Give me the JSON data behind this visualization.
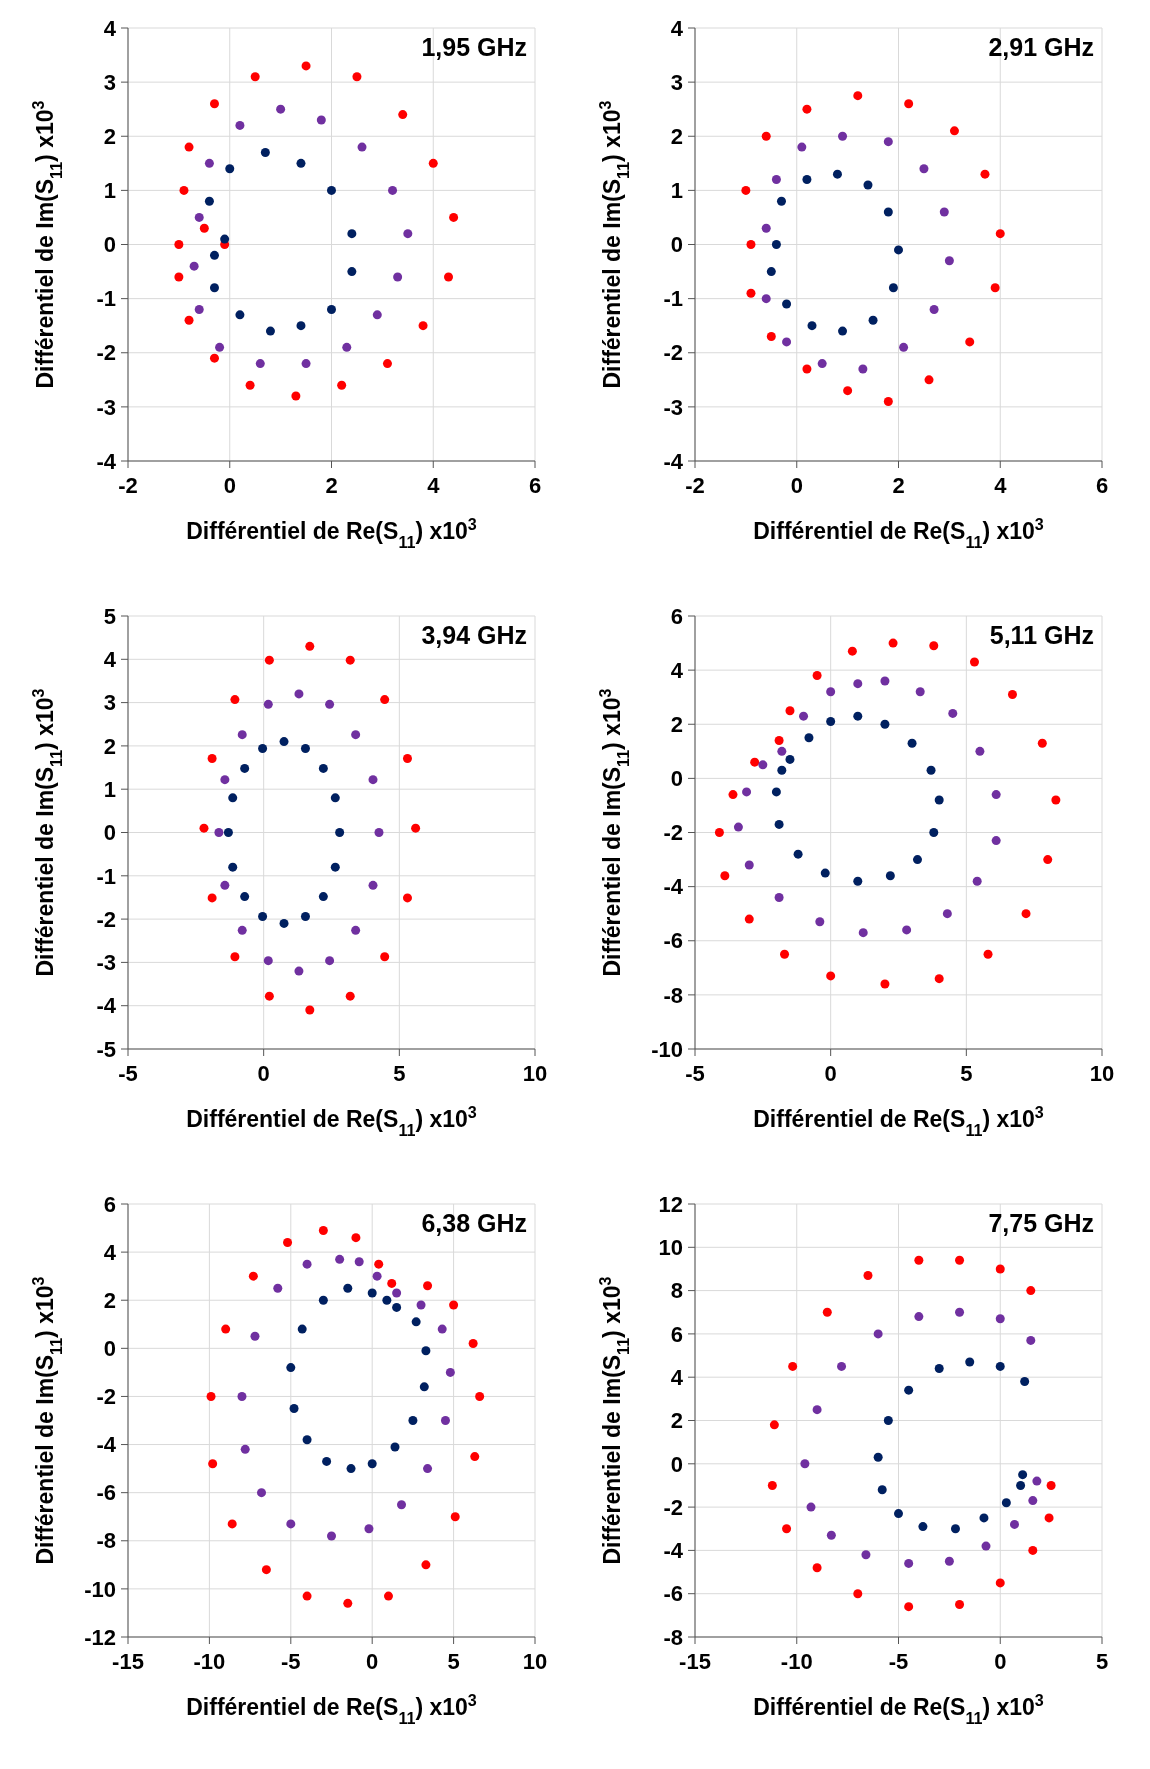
{
  "chart_data": [
    {
      "type": "scatter",
      "title": "1,95 GHz",
      "xlabel": "Différentiel de Re(S$_{11}$) x10$^{3}$",
      "ylabel": "Différentiel de Im(S$_{11}$) x10$^{3}$",
      "xlim": [
        -2,
        6
      ],
      "xticks": [
        -2,
        0,
        2,
        4,
        6
      ],
      "ylim": [
        -4,
        4
      ],
      "yticks": [
        -4,
        -3,
        -2,
        -1,
        0,
        1,
        2,
        3,
        4
      ],
      "grid": true,
      "marker": "circle",
      "series": [
        {
          "color": "#ff0000",
          "x": [
            -0.1,
            -0.5,
            -0.9,
            -0.8,
            -0.3,
            0.5,
            1.5,
            2.5,
            3.4,
            4,
            4.4,
            4.3,
            3.8,
            3.1,
            2.2,
            1.3,
            0.4,
            -0.3,
            -0.8,
            -1,
            -1
          ],
          "values": [
            0,
            0.3,
            1,
            1.8,
            2.6,
            3.1,
            3.3,
            3.1,
            2.4,
            1.5,
            0.5,
            -0.6,
            -1.5,
            -2.2,
            -2.6,
            -2.8,
            -2.6,
            -2.1,
            -1.4,
            -0.6,
            0
          ]
        },
        {
          "color": "#7030a0",
          "x": [
            -0.6,
            -0.4,
            0.2,
            1,
            1.8,
            2.6,
            3.2,
            3.5,
            3.3,
            2.9,
            2.3,
            1.5,
            0.6,
            -0.2,
            -0.6,
            -0.7
          ],
          "values": [
            0.5,
            1.5,
            2.2,
            2.5,
            2.3,
            1.8,
            1,
            0.2,
            -0.6,
            -1.3,
            -1.9,
            -2.2,
            -2.2,
            -1.9,
            -1.2,
            -0.4
          ]
        },
        {
          "color": "#002060",
          "x": [
            -0.1,
            -0.4,
            0,
            0.7,
            1.4,
            2,
            2.4,
            2.4,
            2,
            1.4,
            0.8,
            0.2,
            -0.3,
            -0.3
          ],
          "values": [
            0.1,
            0.8,
            1.4,
            1.7,
            1.5,
            1,
            0.2,
            -0.5,
            -1.2,
            -1.5,
            -1.6,
            -1.3,
            -0.8,
            -0.2
          ]
        }
      ]
    },
    {
      "type": "scatter",
      "title": "2,91 GHz",
      "xlabel": "Différentiel de Re(S$_{11}$) x10$^{3}$",
      "ylabel": "Différentiel de Im(S$_{11}$) x10$^{3}$",
      "xlim": [
        -2,
        6
      ],
      "xticks": [
        -2,
        0,
        2,
        4,
        6
      ],
      "ylim": [
        -4,
        4
      ],
      "yticks": [
        -4,
        -3,
        -2,
        -1,
        0,
        1,
        2,
        3,
        4
      ],
      "grid": true,
      "marker": "circle",
      "series": [
        {
          "color": "#ff0000",
          "x": [
            -0.9,
            -1,
            -0.6,
            0.2,
            1.2,
            2.2,
            3.1,
            3.7,
            4,
            3.9,
            3.4,
            2.6,
            1.8,
            1,
            0.2,
            -0.5,
            -0.9
          ],
          "values": [
            0,
            1,
            2,
            2.5,
            2.75,
            2.6,
            2.1,
            1.3,
            0.2,
            -0.8,
            -1.8,
            -2.5,
            -2.9,
            -2.7,
            -2.3,
            -1.7,
            -0.9
          ]
        },
        {
          "color": "#7030a0",
          "x": [
            -0.6,
            -0.4,
            0.1,
            0.9,
            1.8,
            2.5,
            2.9,
            3,
            2.7,
            2.1,
            1.3,
            0.5,
            -0.2,
            -0.6
          ],
          "values": [
            0.3,
            1.2,
            1.8,
            2,
            1.9,
            1.4,
            0.6,
            -0.3,
            -1.2,
            -1.9,
            -2.3,
            -2.2,
            -1.8,
            -1
          ]
        },
        {
          "color": "#002060",
          "x": [
            -0.4,
            -0.3,
            0.2,
            0.8,
            1.4,
            1.8,
            2,
            1.9,
            1.5,
            0.9,
            0.3,
            -0.2,
            -0.5
          ],
          "values": [
            0,
            0.8,
            1.2,
            1.3,
            1.1,
            0.6,
            -0.1,
            -0.8,
            -1.4,
            -1.6,
            -1.5,
            -1.1,
            -0.5
          ]
        }
      ]
    },
    {
      "type": "scatter",
      "title": "3,94 GHz",
      "xlabel": "Différentiel de Re(S$_{11}$) x10$^{3}$",
      "ylabel": "Différentiel de Im(S$_{11}$) x10$^{3}$",
      "xlim": [
        -5,
        10
      ],
      "xticks": [
        -5,
        0,
        5,
        10
      ],
      "ylim": [
        -5,
        5
      ],
      "yticks": [
        -5,
        -4,
        -3,
        -2,
        -1,
        0,
        1,
        2,
        3,
        4,
        5
      ],
      "grid": true,
      "marker": "circle",
      "series": [
        {
          "color": "#ff0000",
          "x": [
            5.6,
            5.3,
            4.46,
            3.19,
            1.7,
            0.21,
            -1.06,
            -1.9,
            -2.2,
            -1.9,
            -1.06,
            0.21,
            1.7,
            3.19,
            4.46,
            5.3
          ],
          "values": [
            0.1,
            1.71,
            3.07,
            3.98,
            4.3,
            3.98,
            3.07,
            1.71,
            0.1,
            -1.51,
            -2.87,
            -3.78,
            -4.1,
            -3.78,
            -2.87,
            -1.51
          ]
        },
        {
          "color": "#7030a0",
          "x": [
            4.25,
            4.03,
            3.39,
            2.43,
            1.3,
            0.17,
            -0.79,
            -1.43,
            -1.65,
            -1.43,
            -0.79,
            0.17,
            1.3,
            2.43,
            3.39,
            4.03
          ],
          "values": [
            0,
            1.22,
            2.26,
            2.96,
            3.2,
            2.96,
            2.26,
            1.22,
            0,
            -1.22,
            -2.26,
            -2.96,
            -3.2,
            -2.96,
            -2.26,
            -1.22
          ]
        },
        {
          "color": "#002060",
          "x": [
            2.8,
            2.64,
            2.2,
            1.54,
            0.75,
            -0.04,
            -0.7,
            -1.14,
            -1.3,
            -1.14,
            -0.7,
            -0.04,
            0.75,
            1.54,
            2.2,
            2.64
          ],
          "values": [
            0,
            0.8,
            1.48,
            1.94,
            2.1,
            1.94,
            1.48,
            0.8,
            0,
            -0.8,
            -1.48,
            -1.94,
            -2.1,
            -1.94,
            -1.48,
            -0.8
          ]
        }
      ]
    },
    {
      "type": "scatter",
      "title": "5,11 GHz",
      "xlabel": "Différentiel de Re(S$_{11}$) x10$^{3}$",
      "ylabel": "Différentiel de Im(S$_{11}$) x10$^{3}$",
      "xlim": [
        -5,
        10
      ],
      "xticks": [
        -5,
        0,
        5,
        10
      ],
      "ylim": [
        -10,
        6
      ],
      "yticks": [
        -10,
        -8,
        -6,
        -4,
        -2,
        0,
        2,
        4,
        6
      ],
      "grid": true,
      "marker": "circle",
      "series": [
        {
          "color": "#ff0000",
          "x": [
            -1.9,
            -1.5,
            -0.5,
            0.8,
            2.3,
            3.8,
            5.3,
            6.7,
            7.8,
            8.3,
            8,
            7.2,
            5.8,
            4,
            2,
            0,
            -1.7,
            -3,
            -3.9,
            -4.1,
            -3.6,
            -2.8
          ],
          "values": [
            1.4,
            2.5,
            3.8,
            4.7,
            5,
            4.9,
            4.3,
            3.1,
            1.3,
            -0.8,
            -3,
            -5,
            -6.5,
            -7.4,
            -7.6,
            -7.3,
            -6.5,
            -5.2,
            -3.6,
            -2,
            -0.6,
            0.6
          ]
        },
        {
          "color": "#7030a0",
          "x": [
            -1.8,
            -1,
            0,
            1,
            2,
            3.3,
            4.5,
            5.5,
            6.1,
            6.1,
            5.4,
            4.3,
            2.8,
            1.2,
            -0.4,
            -1.9,
            -3,
            -3.4,
            -3.1,
            -2.5
          ],
          "values": [
            1,
            2.3,
            3.2,
            3.5,
            3.6,
            3.2,
            2.4,
            1,
            -0.6,
            -2.3,
            -3.8,
            -5,
            -5.6,
            -5.7,
            -5.3,
            -4.4,
            -3.2,
            -1.8,
            -0.5,
            0.5
          ]
        },
        {
          "color": "#002060",
          "x": [
            -1.5,
            -0.8,
            0,
            1,
            2,
            3,
            3.7,
            4,
            3.8,
            3.2,
            2.2,
            1,
            -0.2,
            -1.2,
            -1.9,
            -2,
            -1.8
          ],
          "values": [
            0.7,
            1.5,
            2.1,
            2.3,
            2,
            1.3,
            0.3,
            -0.8,
            -2,
            -3,
            -3.6,
            -3.8,
            -3.5,
            -2.8,
            -1.7,
            -0.5,
            0.3
          ]
        }
      ]
    },
    {
      "type": "scatter",
      "title": "6,38 GHz",
      "xlabel": "Différentiel de Re(S$_{11}$) x10$^{3}$",
      "ylabel": "Différentiel de Im(S$_{11}$) x10$^{3}$",
      "xlim": [
        -15,
        10
      ],
      "xticks": [
        -15,
        -10,
        -5,
        0,
        5,
        10
      ],
      "ylim": [
        -12,
        6
      ],
      "yticks": [
        -12,
        -10,
        -8,
        -6,
        -4,
        -2,
        0,
        2,
        4,
        6
      ],
      "grid": true,
      "marker": "circle",
      "series": [
        {
          "color": "#ff0000",
          "x": [
            -3,
            -5.2,
            -7.3,
            -9,
            -9.9,
            -9.8,
            -8.6,
            -6.5,
            -4,
            -1.5,
            1,
            3.3,
            5.1,
            6.3,
            6.6,
            6.2,
            5,
            3.4,
            1.2,
            0.4,
            -1
          ],
          "values": [
            4.9,
            4.4,
            3,
            0.8,
            -2,
            -4.8,
            -7.3,
            -9.2,
            -10.3,
            -10.6,
            -10.3,
            -9,
            -7,
            -4.5,
            -2,
            0.2,
            1.8,
            2.6,
            2.7,
            3.5,
            4.6
          ]
        },
        {
          "color": "#7030a0",
          "x": [
            -2,
            -4,
            -5.8,
            -7.2,
            -8,
            -7.8,
            -6.8,
            -5,
            -2.5,
            -0.2,
            1.8,
            3.4,
            4.5,
            4.8,
            4.3,
            3,
            1.5,
            0.3,
            -0.8
          ],
          "values": [
            3.7,
            3.5,
            2.5,
            0.5,
            -2,
            -4.2,
            -6,
            -7.3,
            -7.8,
            -7.5,
            -6.5,
            -5,
            -3,
            -1,
            0.8,
            1.8,
            2.3,
            3,
            3.6
          ]
        },
        {
          "color": "#002060",
          "x": [
            -1.5,
            -3,
            -4.3,
            -5,
            -4.8,
            -4,
            -2.8,
            -1.3,
            0,
            1.4,
            2.5,
            3.2,
            3.3,
            2.7,
            1.5,
            0.9,
            0
          ],
          "values": [
            2.5,
            2,
            0.8,
            -0.8,
            -2.5,
            -3.8,
            -4.7,
            -5,
            -4.8,
            -4.1,
            -3,
            -1.6,
            -0.1,
            1.1,
            1.7,
            2,
            2.3
          ]
        }
      ]
    },
    {
      "type": "scatter",
      "title": "7,75 GHz",
      "xlabel": "Différentiel de Re(S$_{11}$) x10$^{3}$",
      "ylabel": "Différentiel de Im(S$_{11}$) x10$^{3}$",
      "xlim": [
        -15,
        5
      ],
      "xticks": [
        -15,
        -10,
        -5,
        0,
        5
      ],
      "ylim": [
        -8,
        12
      ],
      "yticks": [
        -8,
        -6,
        -4,
        -2,
        0,
        2,
        4,
        6,
        8,
        10,
        12
      ],
      "grid": true,
      "marker": "circle",
      "series": [
        {
          "color": "#ff0000",
          "x": [
            1.5,
            0,
            -2,
            -4,
            -6.5,
            -8.5,
            -10.2,
            -11.1,
            -11.2,
            -10.5,
            -9,
            -7,
            -4.5,
            -2,
            0,
            1.6,
            2.4,
            2.5
          ],
          "values": [
            8,
            9,
            9.4,
            9.4,
            8.7,
            7,
            4.5,
            1.8,
            -1,
            -3,
            -4.8,
            -6,
            -6.6,
            -6.5,
            -5.5,
            -4,
            -2.5,
            -1
          ]
        },
        {
          "color": "#7030a0",
          "x": [
            1.5,
            0,
            -2,
            -4,
            -6,
            -7.8,
            -9,
            -9.6,
            -9.3,
            -8.3,
            -6.6,
            -4.5,
            -2.5,
            -0.7,
            0.7,
            1.6,
            1.8
          ],
          "values": [
            5.7,
            6.7,
            7,
            6.8,
            6,
            4.5,
            2.5,
            0,
            -2,
            -3.3,
            -4.2,
            -4.6,
            -4.5,
            -3.8,
            -2.8,
            -1.7,
            -0.8
          ]
        },
        {
          "color": "#002060",
          "x": [
            1.2,
            0,
            -1.5,
            -3,
            -4.5,
            -5.5,
            -6,
            -5.8,
            -5,
            -3.8,
            -2.2,
            -0.8,
            0.3,
            1,
            1.1
          ],
          "values": [
            3.8,
            4.5,
            4.7,
            4.4,
            3.4,
            2,
            0.3,
            -1.2,
            -2.3,
            -2.9,
            -3,
            -2.5,
            -1.8,
            -1,
            -0.5
          ]
        }
      ]
    }
  ]
}
